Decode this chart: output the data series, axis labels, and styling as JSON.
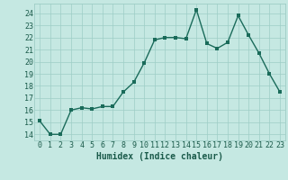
{
  "x": [
    0,
    1,
    2,
    3,
    4,
    5,
    6,
    7,
    8,
    9,
    10,
    11,
    12,
    13,
    14,
    15,
    16,
    17,
    18,
    19,
    20,
    21,
    22,
    23
  ],
  "y": [
    15.1,
    14.0,
    14.0,
    16.0,
    16.2,
    16.1,
    16.3,
    16.3,
    17.5,
    18.3,
    19.9,
    21.8,
    22.0,
    22.0,
    21.9,
    24.3,
    21.5,
    21.1,
    21.6,
    23.8,
    22.2,
    20.7,
    19.0,
    17.5
  ],
  "bg_color": "#c5e8e2",
  "grid_color": "#9ecdc6",
  "line_color": "#1a6b5a",
  "marker_color": "#1a6b5a",
  "xlabel": "Humidex (Indice chaleur)",
  "ylim": [
    13.5,
    24.8
  ],
  "xlim": [
    -0.5,
    23.5
  ],
  "yticks": [
    14,
    15,
    16,
    17,
    18,
    19,
    20,
    21,
    22,
    23,
    24
  ],
  "xticks": [
    0,
    1,
    2,
    3,
    4,
    5,
    6,
    7,
    8,
    9,
    10,
    11,
    12,
    13,
    14,
    15,
    16,
    17,
    18,
    19,
    20,
    21,
    22,
    23
  ],
  "xlabel_fontsize": 7,
  "tick_fontsize": 6,
  "line_width": 1.0,
  "marker_size": 2.5
}
